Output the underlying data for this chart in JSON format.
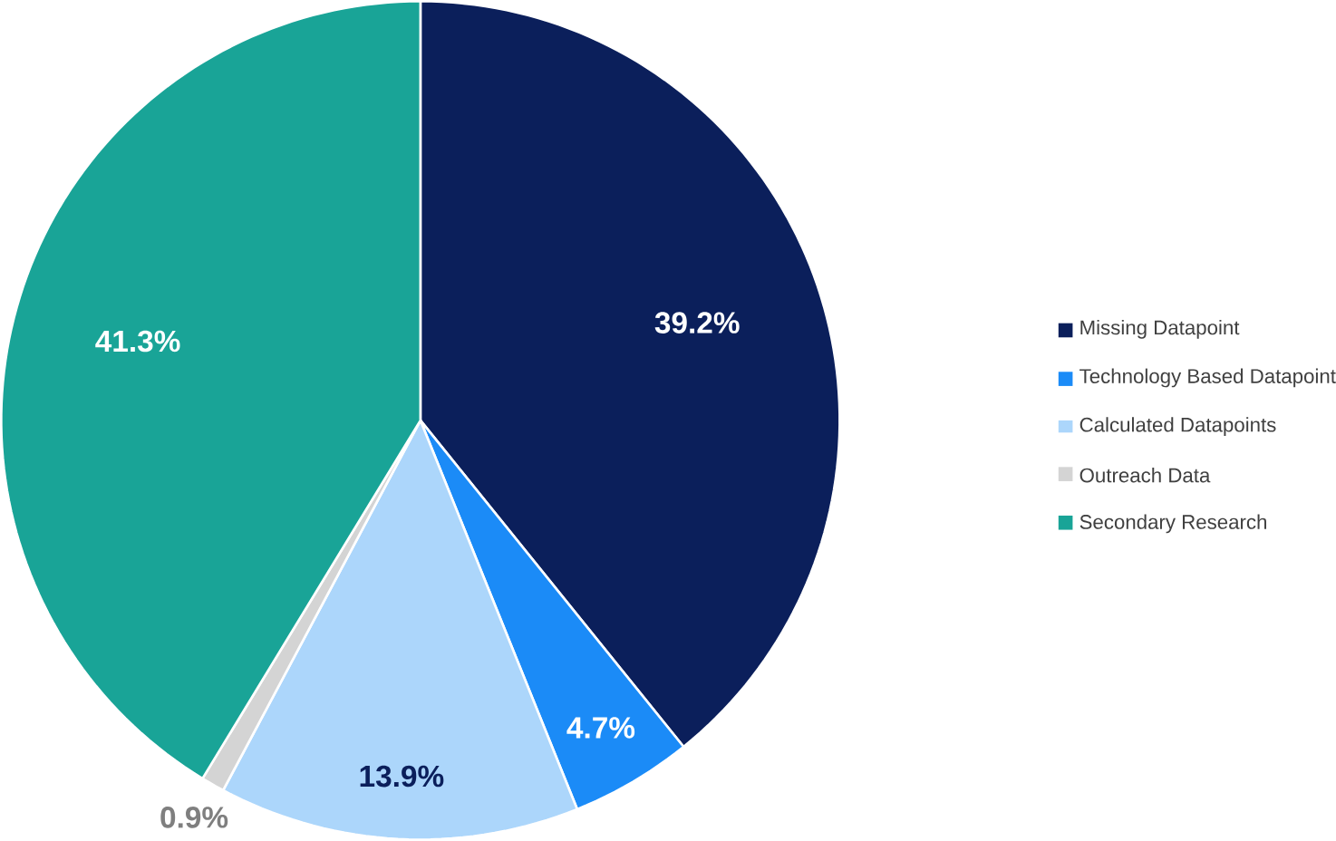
{
  "chart_data": {
    "type": "pie",
    "categories": [
      "Missing Datapoint",
      "Technology Based Datapoint",
      "Calculated Datapoints",
      "Outreach Data",
      "Secondary Research"
    ],
    "values": [
      39.2,
      4.7,
      13.9,
      0.9,
      41.3
    ],
    "value_labels": [
      "39.2%",
      "4.7%",
      "13.9%",
      "0.9%",
      "41.3%"
    ],
    "colors": [
      "#0b1f5b",
      "#1b8bf7",
      "#acd6fb",
      "#d4d4d4",
      "#19a497"
    ],
    "legend": "right"
  }
}
